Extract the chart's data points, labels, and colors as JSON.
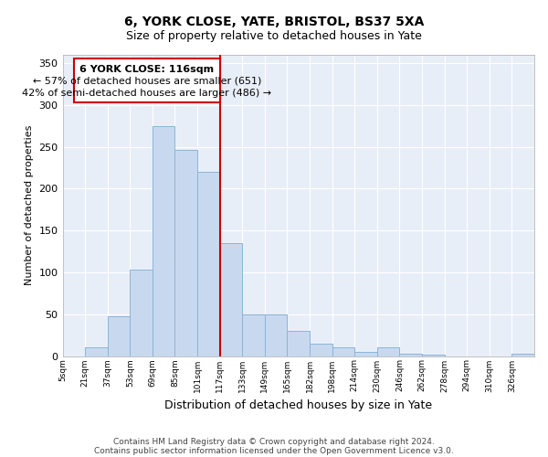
{
  "title": "6, YORK CLOSE, YATE, BRISTOL, BS37 5XA",
  "subtitle": "Size of property relative to detached houses in Yate",
  "xlabel": "Distribution of detached houses by size in Yate",
  "ylabel": "Number of detached properties",
  "bin_labels": [
    "5sqm",
    "21sqm",
    "37sqm",
    "53sqm",
    "69sqm",
    "85sqm",
    "101sqm",
    "117sqm",
    "133sqm",
    "149sqm",
    "165sqm",
    "182sqm",
    "198sqm",
    "214sqm",
    "230sqm",
    "246sqm",
    "262sqm",
    "278sqm",
    "294sqm",
    "310sqm",
    "326sqm"
  ],
  "bar_heights": [
    0,
    10,
    48,
    103,
    275,
    246,
    220,
    135,
    50,
    50,
    30,
    15,
    10,
    5,
    10,
    3,
    2,
    0,
    0,
    0,
    3
  ],
  "bar_color": "#c8d9ef",
  "bar_edge_color": "#8ab4d9",
  "vline_color": "#cc0000",
  "ylim": [
    0,
    360
  ],
  "yticks": [
    0,
    50,
    100,
    150,
    200,
    250,
    300,
    350
  ],
  "annotation_title": "6 YORK CLOSE: 116sqm",
  "annotation_line1": "← 57% of detached houses are smaller (651)",
  "annotation_line2": "42% of semi-detached houses are larger (486) →",
  "annotation_box_color": "#ffffff",
  "annotation_box_edge": "#cc0000",
  "footer1": "Contains HM Land Registry data © Crown copyright and database right 2024.",
  "footer2": "Contains public sector information licensed under the Open Government Licence v3.0.",
  "num_bins": 21,
  "bar_width": 1.0,
  "vline_bin": 7,
  "plot_bg": "#e8eef8",
  "grid_color": "#ffffff"
}
